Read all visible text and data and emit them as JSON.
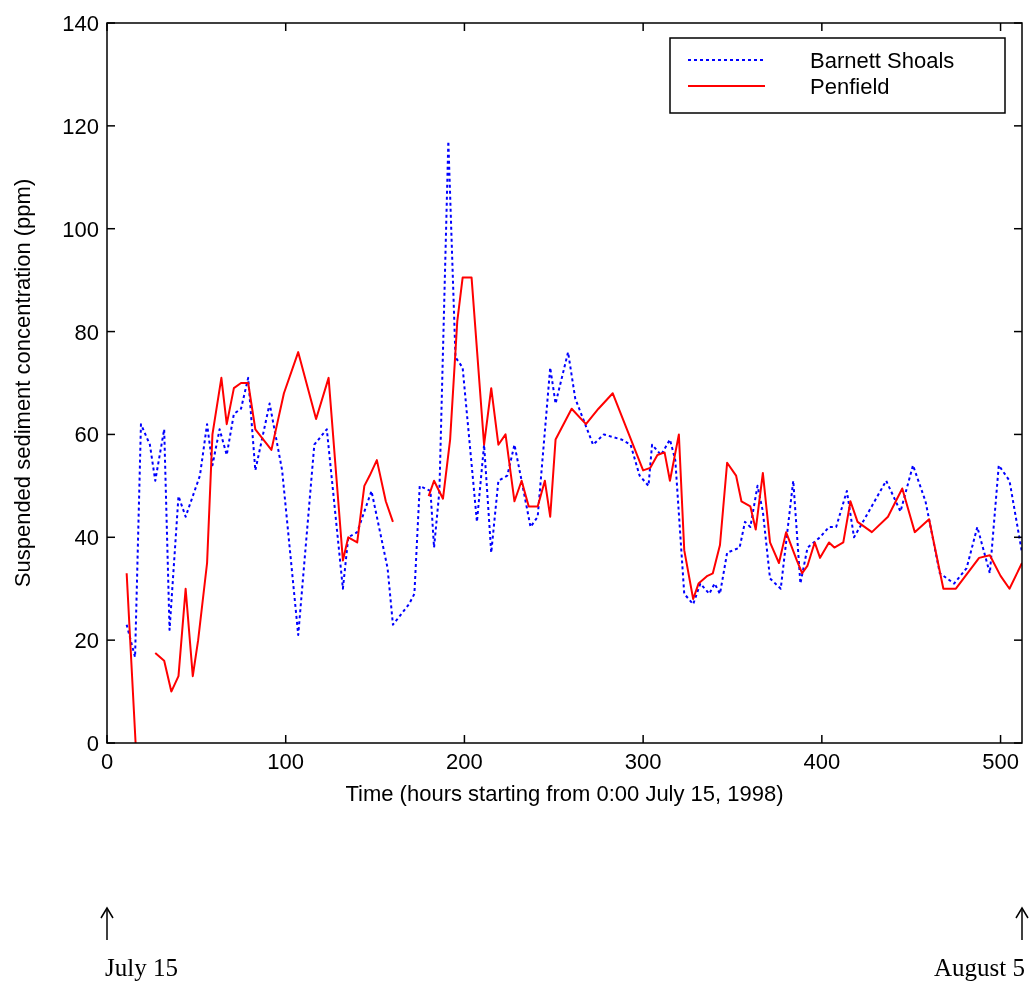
{
  "chart_data": {
    "type": "line",
    "xlabel": "Time (hours starting from 0:00 July 15, 1998)",
    "ylabel": "Suspended sediment concentration (ppm)",
    "xlim": [
      0,
      512
    ],
    "ylim": [
      0,
      140
    ],
    "xticks": [
      0,
      100,
      200,
      300,
      400,
      500
    ],
    "yticks": [
      0,
      20,
      40,
      60,
      80,
      100,
      120,
      140
    ],
    "grid": false,
    "legend": "top right",
    "annotations": [
      "July 15",
      "August 5"
    ],
    "series": [
      {
        "name": "Barnett Shoals",
        "color": "#0000ff",
        "line_style": "dotted",
        "x": [
          11,
          15.7,
          19,
          24,
          27,
          32,
          35,
          40,
          44,
          52,
          56,
          59,
          63,
          67,
          71,
          75,
          79,
          83,
          91,
          98,
          107,
          116,
          123,
          132,
          135,
          140,
          148,
          157,
          160,
          169,
          172,
          175,
          181,
          183,
          186,
          191,
          195,
          199,
          203,
          207,
          211,
          215,
          219,
          224,
          228,
          232,
          237,
          241,
          248,
          251,
          258,
          262,
          272,
          278,
          288,
          293,
          298,
          303,
          305,
          310,
          315,
          318,
          323,
          328,
          332,
          337,
          340,
          343,
          347,
          354,
          357,
          360,
          364,
          367,
          371,
          377,
          384,
          388,
          392,
          399,
          404,
          408,
          414,
          418,
          423,
          436,
          444,
          451,
          458,
          466,
          474,
          481,
          487,
          494,
          499,
          505,
          512
        ],
        "values": [
          23,
          16.7,
          62,
          58,
          51,
          61,
          22,
          48,
          44,
          52,
          62,
          54,
          61,
          56,
          64,
          65,
          71,
          53,
          66,
          53,
          21,
          58,
          61,
          30,
          40,
          41,
          49,
          34,
          23,
          27,
          29,
          50,
          49,
          38,
          49,
          117,
          75,
          73,
          58,
          43,
          58,
          37,
          51,
          52,
          58,
          51,
          42,
          44,
          73,
          66,
          76,
          67,
          58,
          60,
          59,
          58,
          52,
          50,
          58,
          56,
          59,
          55,
          29,
          27,
          31,
          29,
          31,
          29,
          37,
          38,
          43,
          42,
          50,
          45,
          32,
          30,
          51,
          31,
          38,
          40,
          42,
          42,
          49,
          40,
          43,
          51,
          45,
          54,
          47,
          33,
          31,
          34,
          42,
          33,
          54,
          51,
          37
        ]
      },
      {
        "name": "Penfield",
        "color": "#ff0000",
        "line_style": "solid",
        "x": [
          11,
          16,
          20,
          27,
          32,
          36,
          40,
          44,
          48,
          51,
          56,
          59,
          64,
          67,
          71,
          75,
          79,
          83,
          92,
          99,
          107,
          117,
          124,
          132,
          135,
          140,
          144,
          147,
          151,
          156,
          160,
          170,
          180,
          183,
          188,
          192,
          196,
          199,
          204,
          211,
          215,
          219,
          223,
          228,
          232,
          236,
          241,
          245,
          248,
          251,
          260,
          268,
          275,
          283,
          300,
          304,
          308,
          312,
          315,
          320,
          323,
          328,
          331,
          336,
          339,
          343,
          347,
          352,
          355,
          360,
          363,
          367,
          371,
          376,
          380,
          386,
          389,
          392,
          396,
          399,
          404,
          407,
          412,
          416,
          420,
          428,
          437,
          445,
          452,
          460,
          468,
          475,
          488,
          494,
          500,
          505,
          512
        ],
        "values": [
          33,
          0,
          null,
          17.5,
          16,
          10,
          13,
          30,
          13,
          20,
          35,
          60,
          71,
          62,
          69,
          70,
          70,
          61,
          57,
          68,
          76,
          63,
          71,
          35.5,
          40,
          39,
          50,
          52,
          55,
          47,
          43,
          null,
          48,
          51,
          47.5,
          59,
          82,
          90.5,
          90.5,
          58,
          69,
          58,
          60,
          47,
          51,
          46,
          46,
          51,
          44,
          59,
          65,
          62,
          65,
          68,
          53,
          53.5,
          56,
          56.5,
          51,
          60,
          37.5,
          28,
          31,
          32.5,
          33,
          38.5,
          54.5,
          52,
          47,
          46,
          41.5,
          52.5,
          39,
          35,
          41,
          35.5,
          33,
          34.5,
          39,
          36,
          39,
          38,
          39,
          47,
          43,
          41,
          44,
          49.5,
          41,
          43.5,
          30,
          30,
          36,
          36.5,
          32.5,
          30,
          35
        ]
      }
    ]
  }
}
